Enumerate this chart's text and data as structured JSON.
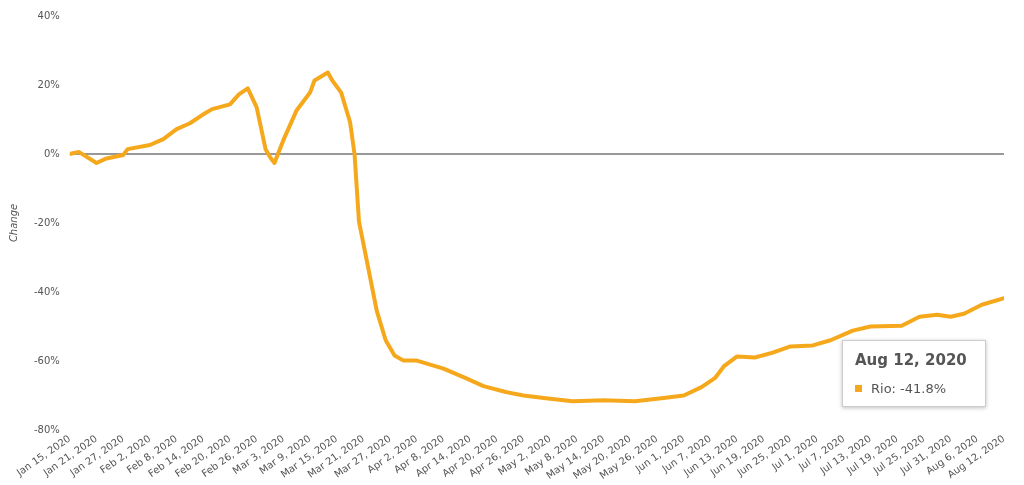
{
  "chart_data": {
    "type": "line",
    "ylabel": "Change",
    "xlim": [
      "2020-01-15",
      "2020-08-12"
    ],
    "xticks": [
      {
        "value": "2020-01-15",
        "label": "Jan 15, 2020"
      },
      {
        "value": "2020-01-21",
        "label": "Jan 21, 2020"
      },
      {
        "value": "2020-01-27",
        "label": "Jan 27, 2020"
      },
      {
        "value": "2020-02-02",
        "label": "Feb 2, 2020"
      },
      {
        "value": "2020-02-08",
        "label": "Feb 8, 2020"
      },
      {
        "value": "2020-02-14",
        "label": "Feb 14, 2020"
      },
      {
        "value": "2020-02-20",
        "label": "Feb 20, 2020"
      },
      {
        "value": "2020-02-26",
        "label": "Feb 26, 2020"
      },
      {
        "value": "2020-03-03",
        "label": "Mar 3, 2020"
      },
      {
        "value": "2020-03-09",
        "label": "Mar 9, 2020"
      },
      {
        "value": "2020-03-15",
        "label": "Mar 15, 2020"
      },
      {
        "value": "2020-03-21",
        "label": "Mar 21, 2020"
      },
      {
        "value": "2020-03-27",
        "label": "Mar 27, 2020"
      },
      {
        "value": "2020-04-02",
        "label": "Apr 2, 2020"
      },
      {
        "value": "2020-04-08",
        "label": "Apr 8, 2020"
      },
      {
        "value": "2020-04-14",
        "label": "Apr 14, 2020"
      },
      {
        "value": "2020-04-20",
        "label": "Apr 20, 2020"
      },
      {
        "value": "2020-04-26",
        "label": "Apr 26, 2020"
      },
      {
        "value": "2020-05-02",
        "label": "May 2, 2020"
      },
      {
        "value": "2020-05-08",
        "label": "May 8, 2020"
      },
      {
        "value": "2020-05-14",
        "label": "May 14, 2020"
      },
      {
        "value": "2020-05-20",
        "label": "May 20, 2020"
      },
      {
        "value": "2020-05-26",
        "label": "May 26, 2020"
      },
      {
        "value": "2020-06-01",
        "label": "Jun 1, 2020"
      },
      {
        "value": "2020-06-07",
        "label": "Jun 7, 2020"
      },
      {
        "value": "2020-06-13",
        "label": "Jun 13, 2020"
      },
      {
        "value": "2020-06-19",
        "label": "Jun 19, 2020"
      },
      {
        "value": "2020-06-25",
        "label": "Jun 25, 2020"
      },
      {
        "value": "2020-07-01",
        "label": "Jul 1, 2020"
      },
      {
        "value": "2020-07-07",
        "label": "Jul 7, 2020"
      },
      {
        "value": "2020-07-13",
        "label": "Jul 13, 2020"
      },
      {
        "value": "2020-07-19",
        "label": "Jul 19, 2020"
      },
      {
        "value": "2020-07-25",
        "label": "Jul 25, 2020"
      },
      {
        "value": "2020-07-31",
        "label": "Jul 31, 2020"
      },
      {
        "value": "2020-08-06",
        "label": "Aug 6, 2020"
      },
      {
        "value": "2020-08-12",
        "label": "Aug 12, 2020"
      }
    ],
    "ylim": [
      -80,
      40
    ],
    "yticks": [
      {
        "value": -80,
        "label": "-80%"
      },
      {
        "value": -60,
        "label": "-60%"
      },
      {
        "value": -40,
        "label": "-40%"
      },
      {
        "value": -20,
        "label": "-20%"
      },
      {
        "value": 0,
        "label": "0%"
      },
      {
        "value": 20,
        "label": "20%"
      },
      {
        "value": 40,
        "label": "40%"
      }
    ],
    "grid": false,
    "legend": false,
    "marker": "none",
    "line_style": "solid",
    "ref_lines": [
      {
        "axis": "y",
        "value": 0,
        "color": "#333333"
      }
    ],
    "annotations": [
      "Aug 12, 2020",
      "Rio: -41.8%"
    ],
    "x": [
      "2020-01-15",
      "2020-01-17",
      "2020-01-21",
      "2020-01-23",
      "2020-01-27",
      "2020-01-28",
      "2020-02-02",
      "2020-02-05",
      "2020-02-08",
      "2020-02-11",
      "2020-02-14",
      "2020-02-16",
      "2020-02-20",
      "2020-02-22",
      "2020-02-24",
      "2020-02-26",
      "2020-02-28",
      "2020-02-29",
      "2020-03-01",
      "2020-03-03",
      "2020-03-06",
      "2020-03-09",
      "2020-03-10",
      "2020-03-13",
      "2020-03-14",
      "2020-03-16",
      "2020-03-18",
      "2020-03-19",
      "2020-03-20",
      "2020-03-22",
      "2020-03-24",
      "2020-03-26",
      "2020-03-28",
      "2020-03-30",
      "2020-04-02",
      "2020-04-08",
      "2020-04-13",
      "2020-04-17",
      "2020-04-22",
      "2020-04-26",
      "2020-05-01",
      "2020-05-07",
      "2020-05-14",
      "2020-05-21",
      "2020-05-27",
      "2020-06-01",
      "2020-06-05",
      "2020-06-08",
      "2020-06-10",
      "2020-06-13",
      "2020-06-17",
      "2020-06-21",
      "2020-06-25",
      "2020-06-30",
      "2020-07-04",
      "2020-07-09",
      "2020-07-13",
      "2020-07-20",
      "2020-07-24",
      "2020-07-28",
      "2020-07-31",
      "2020-08-03",
      "2020-08-07",
      "2020-08-12"
    ],
    "series": [
      {
        "color": "#f5a81c",
        "values": [
          0,
          0.6,
          -2.6,
          -1.4,
          -0.3,
          1.4,
          2.6,
          4.3,
          7.2,
          8.9,
          11.5,
          13,
          14.4,
          17.3,
          19,
          13.5,
          1.4,
          -0.9,
          -2.6,
          4,
          12.7,
          17.8,
          21.3,
          23.6,
          21.3,
          17.8,
          9.2,
          0,
          -19.6,
          -32.5,
          -45.5,
          -54,
          -58.4,
          -59.9,
          -59.9,
          -62.2,
          -65,
          -67.3,
          -69,
          -70,
          -70.8,
          -71.7,
          -71.4,
          -71.7,
          -70.8,
          -70,
          -67.6,
          -65,
          -61.6,
          -58.7,
          -59,
          -57.6,
          -55.8,
          -55.5,
          -54,
          -51.2,
          -50,
          -49.8,
          -47.2,
          -46.6,
          -47.2,
          -46.3,
          -43.7,
          -41.8
        ]
      }
    ]
  }
}
